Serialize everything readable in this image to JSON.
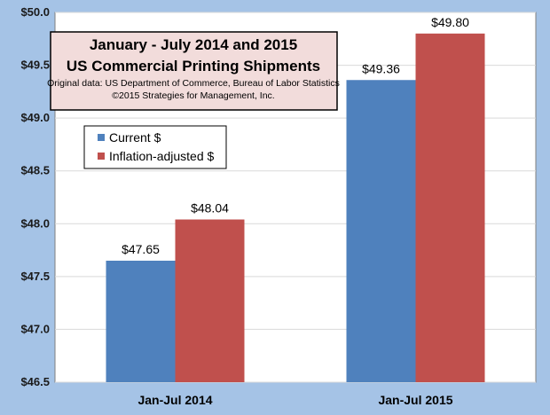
{
  "chart_data": {
    "type": "bar",
    "title_lines": [
      "January - July 2014 and 2015",
      "US Commercial Printing Shipments"
    ],
    "subtitle_lines": [
      "Original data: US Department of Commerce, Bureau of Labor Statistics",
      "©2015 Strategies for Management, Inc."
    ],
    "categories": [
      "Jan-Jul 2014",
      "Jan-Jul 2015"
    ],
    "series": [
      {
        "name": "Current $",
        "values": [
          47.65,
          49.36
        ],
        "color": "#4f81bd",
        "value_labels": [
          "$47.65",
          "$49.36"
        ]
      },
      {
        "name": "Inflation-adjusted $",
        "values": [
          48.04,
          49.8
        ],
        "color": "#c0504d",
        "value_labels": [
          "$48.04",
          "$49.80"
        ]
      }
    ],
    "ylim": [
      46.5,
      50.0
    ],
    "yticks": [
      46.5,
      47.0,
      47.5,
      48.0,
      48.5,
      49.0,
      49.5,
      50.0
    ],
    "ytick_labels": [
      "$46.5",
      "$47.0",
      "$47.5",
      "$48.0",
      "$48.5",
      "$49.0",
      "$49.5",
      "$50.0"
    ],
    "grid": "horizontal",
    "legend_position": "upper-left",
    "colors": {
      "background": "#a5c3e6",
      "plot_area": "#ffffff",
      "gridline": "#d9d9d9",
      "title_box": "#f2dcdb"
    }
  }
}
